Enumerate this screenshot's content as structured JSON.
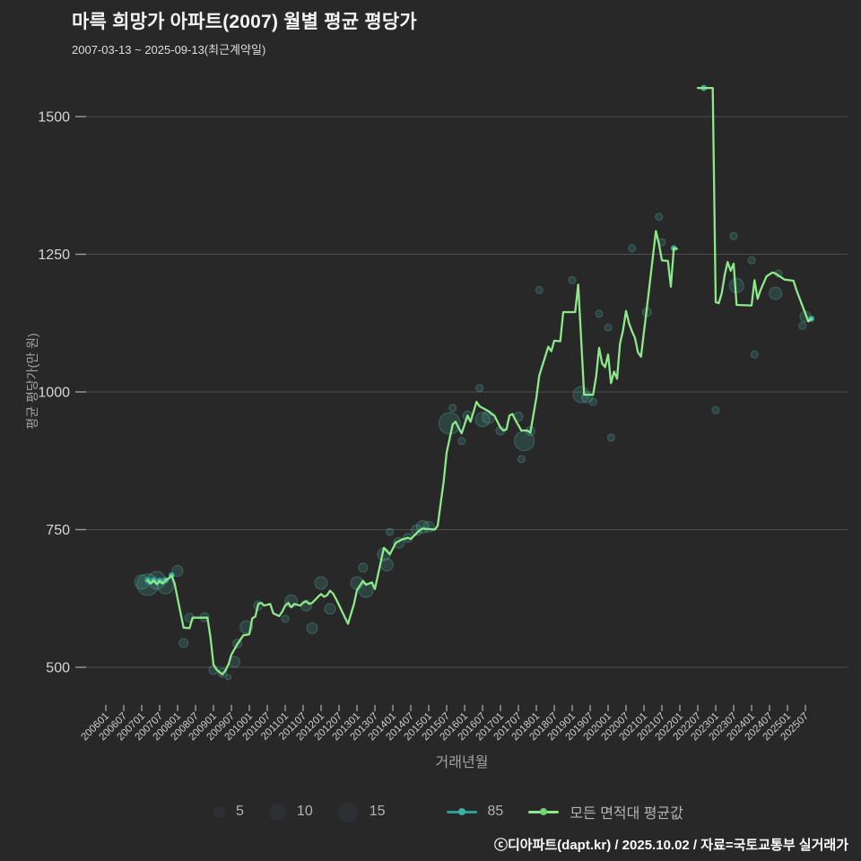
{
  "header": {
    "title": "마륵 희망가 아파트(2007) 월별 평균 평당가",
    "subtitle": "2007-03-13 ~ 2025-09-13(최근계약일)"
  },
  "footer": {
    "credit": "ⓒ디아파트(dapt.kr) / 2025.10.02 / 자료=국토교통부 실거래가"
  },
  "legend": {
    "sizes": [
      "5",
      "10",
      "15"
    ],
    "series_85": "85",
    "series_avg": "모든 면적대 평균값"
  },
  "colors": {
    "background": "#282828",
    "grid": "#4e4e4e",
    "tick": "#9a9a9a",
    "tick_label": "#cdcdcd",
    "y_label": "#d6d6d6",
    "axis_title": "#a3a3a3",
    "line_green": "#8de88a",
    "teal": "#35a79c",
    "bubble_fill": "rgba(80,190,180,0.18)",
    "bubble_stroke": "rgba(95,210,200,0.30)",
    "legend_circle": "#2c3034"
  },
  "chart_data": {
    "type": "line+bubble-scatter",
    "title": "마륵 희망가 아파트(2007) 월별 평균 평당가",
    "subtitle": "2007-03-13 ~ 2025-09-13(최근계약일)",
    "xlabel": "거래년월",
    "ylabel": "평균 평당가(만 원)",
    "ylim": [
      430,
      1580
    ],
    "y_ticks": [
      1500,
      1250,
      1000,
      750,
      500
    ],
    "grid": "horizontal-only",
    "legend_position": "bottom",
    "x_ticks": [
      "200601",
      "200607",
      "200701",
      "200707",
      "200801",
      "200807",
      "200901",
      "200907",
      "201001",
      "201007",
      "201101",
      "201107",
      "201201",
      "201207",
      "201301",
      "201307",
      "201401",
      "201407",
      "201501",
      "201507",
      "201601",
      "201607",
      "201701",
      "201707",
      "201801",
      "201807",
      "201901",
      "201907",
      "202001",
      "202007",
      "202101",
      "202107",
      "202201",
      "202207",
      "202301",
      "202307",
      "202401",
      "202407",
      "202501",
      "202507"
    ],
    "series": [
      {
        "name": "모든 면적대 평균값",
        "type": "line",
        "color": "#8de88a",
        "segments": [
          [
            [
              "2007-03",
              658
            ],
            [
              "2007-04",
              652
            ],
            [
              "2007-05",
              658
            ],
            [
              "2007-06",
              651
            ],
            [
              "2007-07",
              657
            ],
            [
              "2007-08",
              652
            ],
            [
              "2007-09",
              658
            ],
            [
              "2007-10",
              661
            ],
            [
              "2007-11",
              667
            ],
            [
              "2007-12",
              652
            ],
            [
              "2008-01",
              625
            ],
            [
              "2008-03",
              572
            ],
            [
              "2008-05",
              571
            ],
            [
              "2008-06",
              590
            ],
            [
              "2008-11",
              590
            ],
            [
              "2008-12",
              554
            ],
            [
              "2009-01",
              505
            ],
            [
              "2009-02",
              496
            ],
            [
              "2009-04",
              487
            ],
            [
              "2009-05",
              494
            ],
            [
              "2009-06",
              505
            ],
            [
              "2009-07",
              523
            ],
            [
              "2009-09",
              542
            ],
            [
              "2009-11",
              558
            ],
            [
              "2010-01",
              560
            ],
            [
              "2010-02",
              589
            ],
            [
              "2010-03",
              592
            ],
            [
              "2010-04",
              615
            ],
            [
              "2010-05",
              617
            ],
            [
              "2010-06",
              612
            ],
            [
              "2010-08",
              615
            ],
            [
              "2010-09",
              598
            ],
            [
              "2010-11",
              593
            ],
            [
              "2010-12",
              601
            ],
            [
              "2011-01",
              612
            ],
            [
              "2011-02",
              617
            ],
            [
              "2011-03",
              609
            ],
            [
              "2011-04",
              615
            ],
            [
              "2011-06",
              612
            ],
            [
              "2011-07",
              617
            ],
            [
              "2011-08",
              620
            ],
            [
              "2011-09",
              615
            ],
            [
              "2011-10",
              617
            ],
            [
              "2011-12",
              628
            ],
            [
              "2012-01",
              633
            ],
            [
              "2012-02",
              628
            ],
            [
              "2012-03",
              631
            ],
            [
              "2012-04",
              639
            ],
            [
              "2012-05",
              634
            ],
            [
              "2012-06",
              624
            ],
            [
              "2012-10",
              579
            ],
            [
              "2012-12",
              615
            ],
            [
              "2013-01",
              640
            ],
            [
              "2013-03",
              657
            ],
            [
              "2013-04",
              650
            ],
            [
              "2013-06",
              654
            ],
            [
              "2013-07",
              642
            ],
            [
              "2013-10",
              717
            ],
            [
              "2013-12",
              705
            ],
            [
              "2014-02",
              726
            ],
            [
              "2014-04",
              732
            ],
            [
              "2014-06",
              735
            ],
            [
              "2014-07",
              733
            ],
            [
              "2014-10",
              749
            ],
            [
              "2014-11",
              752
            ],
            [
              "2015-03",
              750
            ],
            [
              "2015-04",
              757
            ],
            [
              "2015-06",
              838
            ],
            [
              "2015-07",
              890
            ],
            [
              "2015-08",
              915
            ],
            [
              "2015-09",
              941
            ],
            [
              "2015-10",
              946
            ],
            [
              "2015-11",
              935
            ],
            [
              "2015-12",
              925
            ],
            [
              "2016-02",
              957
            ],
            [
              "2016-03",
              946
            ],
            [
              "2016-05",
              982
            ],
            [
              "2016-06",
              974
            ],
            [
              "2016-08",
              968
            ],
            [
              "2016-09",
              965
            ],
            [
              "2016-10",
              960
            ],
            [
              "2016-11",
              957
            ],
            [
              "2017-01",
              935
            ],
            [
              "2017-02",
              930
            ],
            [
              "2017-03",
              932
            ],
            [
              "2017-04",
              957
            ],
            [
              "2017-05",
              960
            ],
            [
              "2017-06",
              949
            ],
            [
              "2017-08",
              930
            ],
            [
              "2017-10",
              930
            ],
            [
              "2017-11",
              926
            ],
            [
              "2018-01",
              989
            ],
            [
              "2018-02",
              1030
            ],
            [
              "2018-05",
              1082
            ],
            [
              "2018-06",
              1074
            ],
            [
              "2018-07",
              1093
            ],
            [
              "2018-09",
              1092
            ],
            [
              "2018-10",
              1145
            ],
            [
              "2019-02",
              1145
            ],
            [
              "2019-03",
              1195
            ],
            [
              "2019-05",
              995
            ],
            [
              "2019-08",
              995
            ],
            [
              "2019-09",
              1028
            ],
            [
              "2019-10",
              1080
            ],
            [
              "2019-11",
              1052
            ],
            [
              "2019-12",
              1045
            ],
            [
              "2020-01",
              1068
            ],
            [
              "2020-02",
              1016
            ],
            [
              "2020-03",
              1037
            ],
            [
              "2020-04",
              1024
            ],
            [
              "2020-05",
              1088
            ],
            [
              "2020-06",
              1112
            ],
            [
              "2020-07",
              1147
            ],
            [
              "2020-08",
              1125
            ],
            [
              "2020-09",
              1110
            ],
            [
              "2020-10",
              1098
            ],
            [
              "2020-11",
              1072
            ],
            [
              "2020-12",
              1064
            ],
            [
              "2021-01",
              1109
            ],
            [
              "2021-02",
              1153
            ],
            [
              "2021-05",
              1292
            ],
            [
              "2021-06",
              1269
            ],
            [
              "2021-07",
              1239
            ],
            [
              "2021-09",
              1238
            ],
            [
              "2021-10",
              1191
            ],
            [
              "2021-11",
              1261
            ],
            [
              "2021-12",
              1260
            ]
          ],
          [
            [
              "2022-07",
              1552
            ],
            [
              "2022-12",
              1552
            ],
            [
              "2023-01",
              1163
            ],
            [
              "2023-02",
              1161
            ],
            [
              "2023-03",
              1179
            ],
            [
              "2023-04",
              1212
            ],
            [
              "2023-05",
              1236
            ],
            [
              "2023-06",
              1220
            ],
            [
              "2023-07",
              1233
            ],
            [
              "2023-08",
              1158
            ],
            [
              "2024-01",
              1157
            ],
            [
              "2024-02",
              1203
            ],
            [
              "2024-03",
              1169
            ],
            [
              "2024-04",
              1185
            ],
            [
              "2024-06",
              1210
            ],
            [
              "2024-08",
              1217
            ],
            [
              "2024-09",
              1215
            ],
            [
              "2024-12",
              1204
            ],
            [
              "2025-03",
              1202
            ],
            [
              "2025-04",
              1185
            ],
            [
              "2025-05",
              1171
            ],
            [
              "2025-07",
              1142
            ],
            [
              "2025-08",
              1128
            ],
            [
              "2025-09",
              1133
            ]
          ]
        ]
      },
      {
        "name": "85",
        "type": "line-markers",
        "color": "#35a79c",
        "points": [
          [
            "2007-03",
            658
          ],
          [
            "2007-05",
            658
          ],
          [
            "2007-07",
            657
          ],
          [
            "2007-09",
            658
          ],
          [
            "2007-11",
            667
          ],
          [
            "2021-11",
            1261
          ],
          [
            "2022-09",
            1552
          ],
          [
            "2025-09",
            1133
          ]
        ]
      }
    ],
    "bubbles": {
      "note": "translucent teal circles; radius px keyed to count legend 5/10/15",
      "points": [
        [
          "2007-01",
          655,
          8
        ],
        [
          "2007-03",
          650,
          12
        ],
        [
          "2007-06",
          658,
          10
        ],
        [
          "2007-09",
          648,
          9
        ],
        [
          "2008-01",
          675,
          6
        ],
        [
          "2008-03",
          544,
          5
        ],
        [
          "2008-05",
          590,
          5
        ],
        [
          "2008-10",
          591,
          5
        ],
        [
          "2009-01",
          495,
          5
        ],
        [
          "2009-04",
          490,
          5
        ],
        [
          "2009-06",
          482,
          3
        ],
        [
          "2009-08",
          510,
          6
        ],
        [
          "2009-09",
          543,
          5
        ],
        [
          "2009-12",
          573,
          7
        ],
        [
          "2010-04",
          612,
          5
        ],
        [
          "2011-01",
          588,
          4
        ],
        [
          "2011-03",
          620,
          7
        ],
        [
          "2011-08",
          612,
          6
        ],
        [
          "2011-10",
          571,
          6
        ],
        [
          "2012-01",
          653,
          7
        ],
        [
          "2012-04",
          606,
          6
        ],
        [
          "2013-01",
          653,
          7
        ],
        [
          "2013-03",
          681,
          5
        ],
        [
          "2013-04",
          640,
          8
        ],
        [
          "2013-10",
          705,
          7
        ],
        [
          "2013-11",
          686,
          7
        ],
        [
          "2013-12",
          746,
          4
        ],
        [
          "2014-03",
          726,
          6
        ],
        [
          "2014-06",
          735,
          5
        ],
        [
          "2014-09",
          749,
          6
        ],
        [
          "2014-11",
          755,
          7
        ],
        [
          "2015-01",
          755,
          6
        ],
        [
          "2015-08",
          943,
          12
        ],
        [
          "2015-09",
          971,
          4
        ],
        [
          "2015-12",
          911,
          4
        ],
        [
          "2016-02",
          957,
          5
        ],
        [
          "2016-06",
          1007,
          4
        ],
        [
          "2016-07",
          950,
          8
        ],
        [
          "2016-09",
          954,
          7
        ],
        [
          "2017-01",
          930,
          5
        ],
        [
          "2017-07",
          955,
          5
        ],
        [
          "2017-08",
          878,
          4
        ],
        [
          "2017-09",
          911,
          11
        ],
        [
          "2017-11",
          929,
          5
        ],
        [
          "2018-02",
          1185,
          4
        ],
        [
          "2019-01",
          1203,
          4
        ],
        [
          "2019-04",
          995,
          9
        ],
        [
          "2019-06",
          990,
          6
        ],
        [
          "2019-08",
          982,
          4
        ],
        [
          "2019-10",
          1142,
          4
        ],
        [
          "2020-01",
          1117,
          4
        ],
        [
          "2020-02",
          917,
          4
        ],
        [
          "2020-09",
          1261,
          4
        ],
        [
          "2021-02",
          1145,
          5
        ],
        [
          "2021-06",
          1318,
          4
        ],
        [
          "2021-07",
          1272,
          4
        ],
        [
          "2023-01",
          967,
          4
        ],
        [
          "2023-07",
          1283,
          4
        ],
        [
          "2023-08",
          1193,
          8
        ],
        [
          "2024-01",
          1239,
          4
        ],
        [
          "2024-02",
          1068,
          4
        ],
        [
          "2024-09",
          1179,
          7
        ],
        [
          "2024-10",
          1215,
          4
        ],
        [
          "2025-06",
          1120,
          4
        ],
        [
          "2025-07",
          1137,
          6
        ]
      ]
    }
  }
}
